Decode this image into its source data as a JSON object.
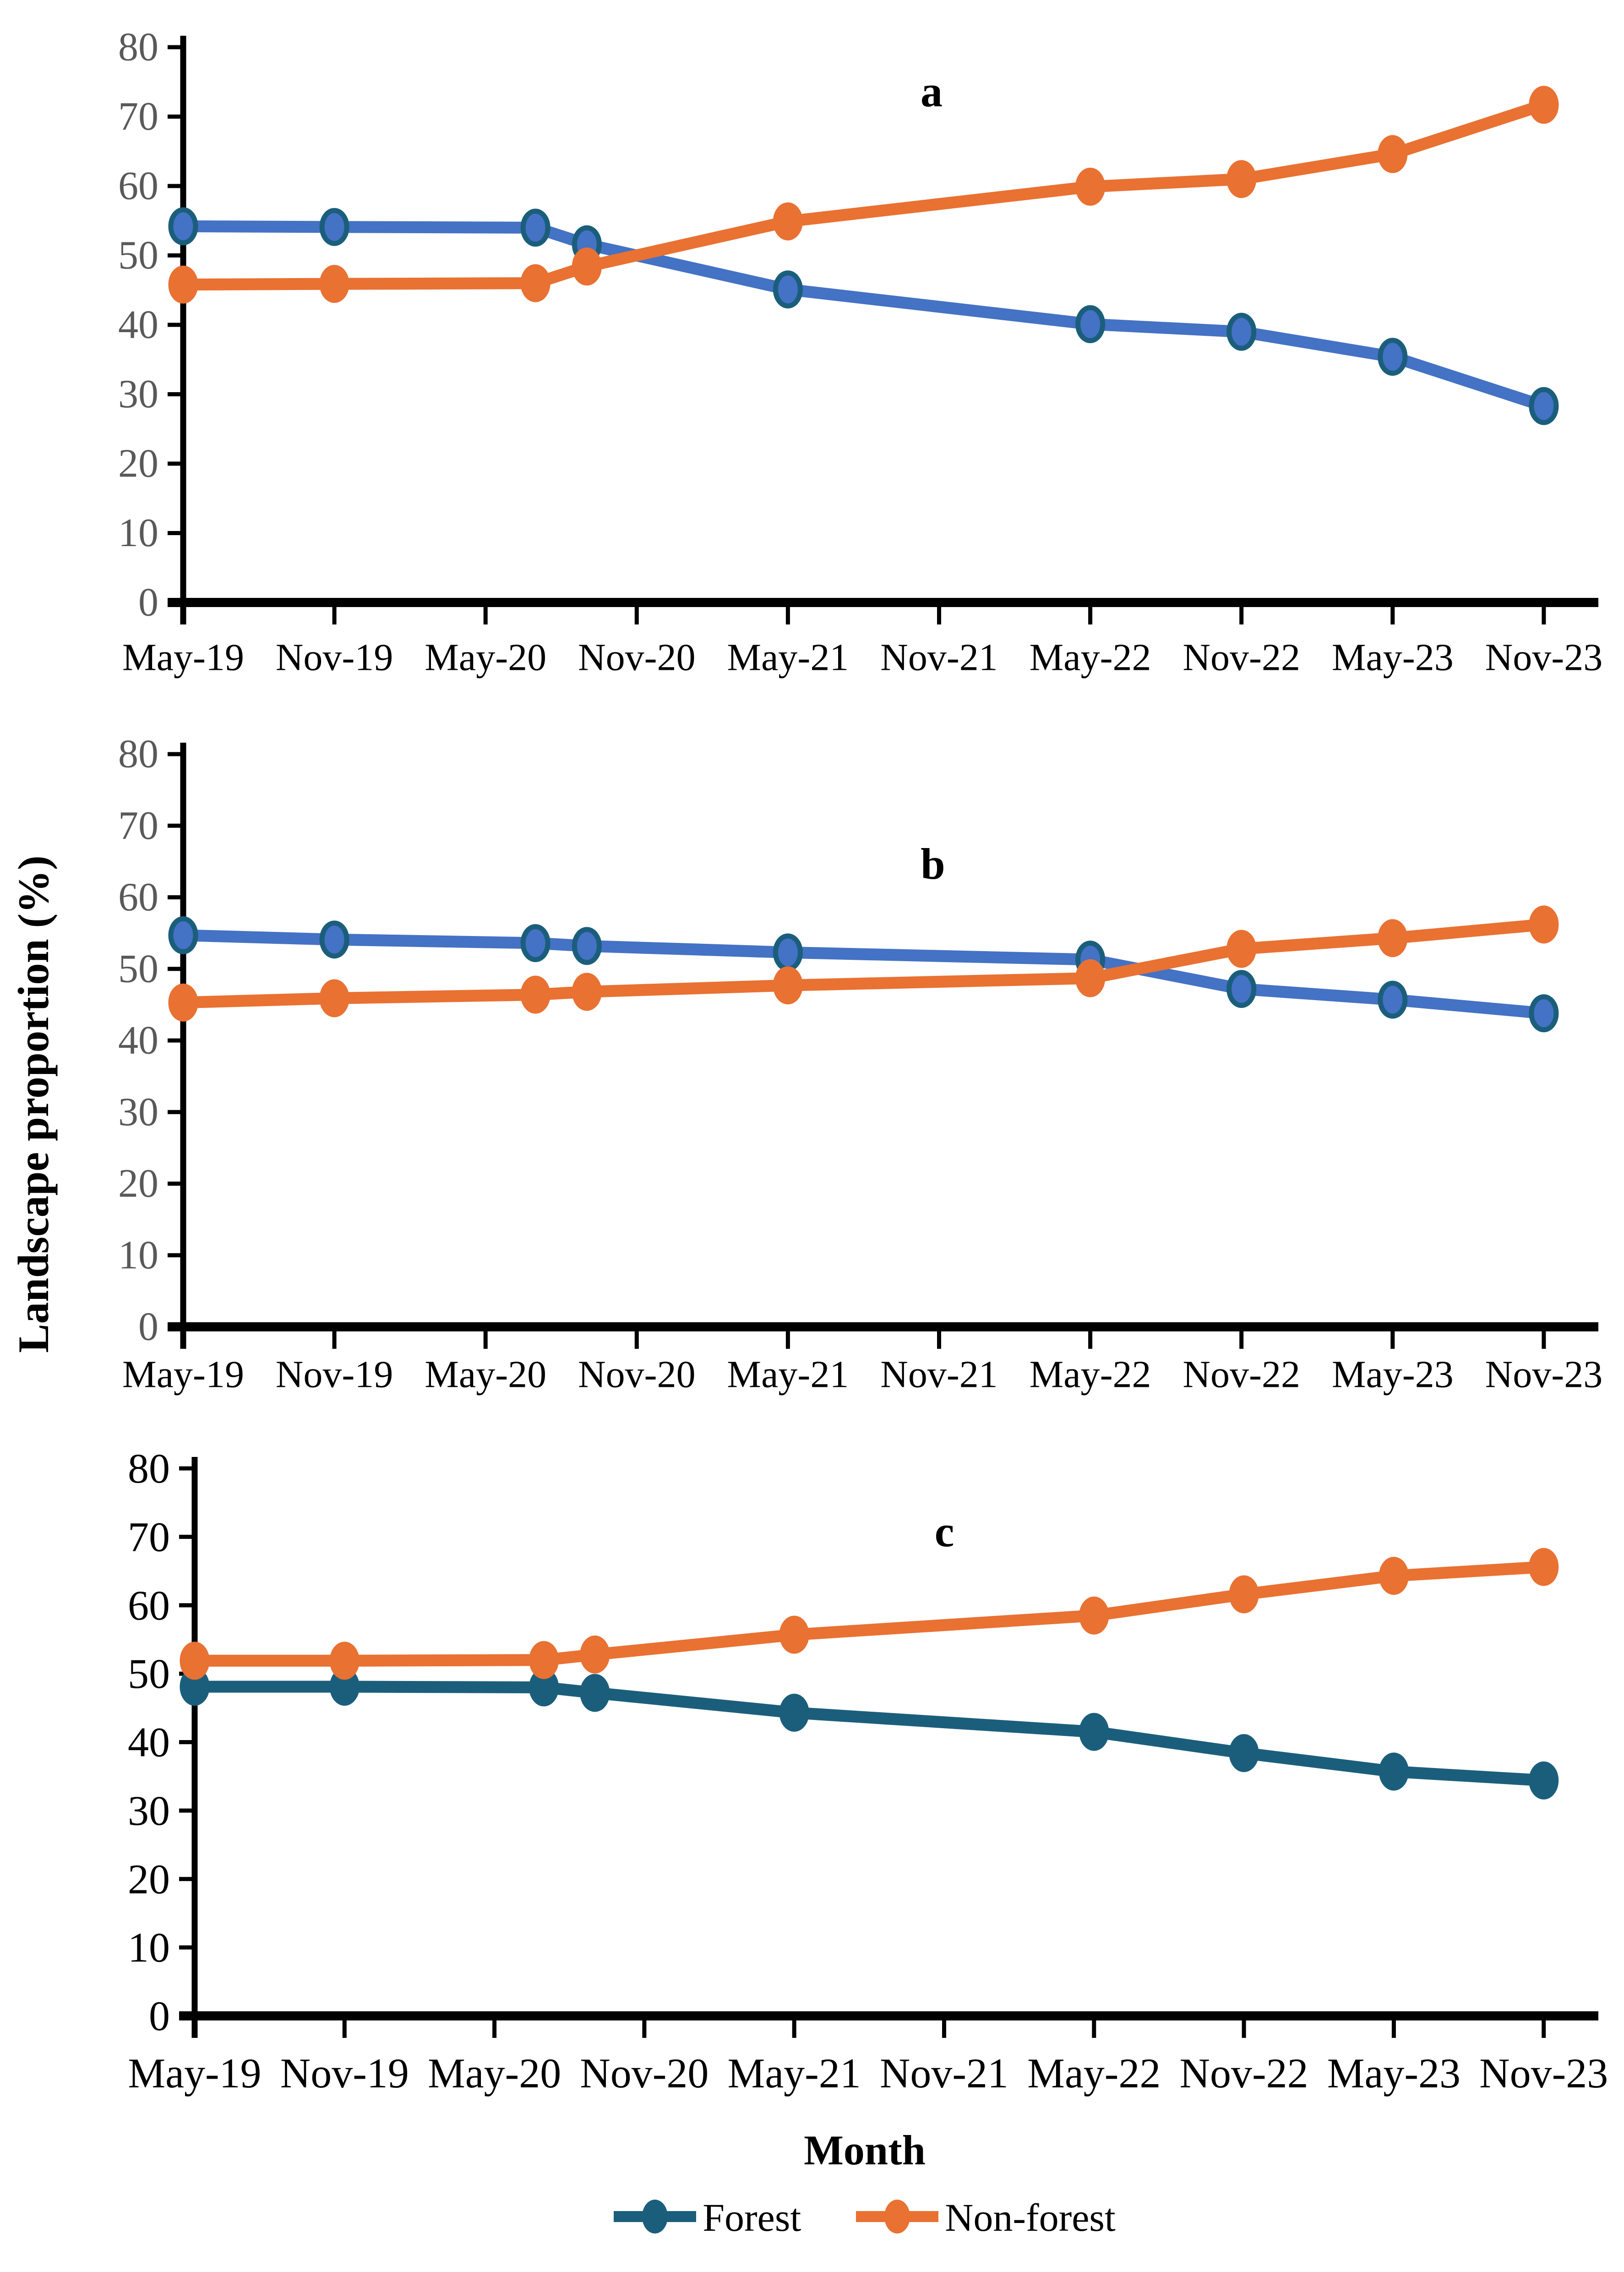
{
  "figure": {
    "y_axis_title": "Landscape proportion (%)",
    "x_axis_title": "Month",
    "legend": [
      {
        "label": "Forest",
        "color": "#1B5E7C",
        "swatch_icon": "line-with-circle-marker"
      },
      {
        "label": "Non-forest",
        "color": "#E97132",
        "swatch_icon": "line-with-circle-marker"
      }
    ],
    "colors": {
      "forest_line_ab": "#4472C4",
      "forest_marker_edge": "#1B5E7C",
      "forest_line_c": "#1B5E7C",
      "non_forest": "#E97132",
      "axis": "#000000",
      "gray_tick_labels": "#595959"
    }
  },
  "chart_data": [
    {
      "type": "line",
      "panel_label": "a",
      "title": "",
      "xlabel": "Month",
      "ylabel": "Landscape proportion (%)",
      "ylim": [
        0,
        80
      ],
      "y_ticks": [
        0,
        10,
        20,
        30,
        40,
        50,
        60,
        70,
        80
      ],
      "y_tick_label_color": "#595959",
      "x_tick_label_color": "#000000",
      "grid": "off",
      "legend_position": "bottom-shared",
      "x_tick_labels": [
        "May-19",
        "Nov-19",
        "May-20",
        "Nov-20",
        "May-21",
        "Nov-21",
        "May-22",
        "Nov-22",
        "May-23",
        "Nov-23"
      ],
      "point_dates": [
        "May-19",
        "Nov-19",
        "Jul-20",
        "Sep-20",
        "May-21",
        "May-22",
        "Nov-22",
        "May-23",
        "Nov-23"
      ],
      "x_units": [
        0,
        1,
        2.33,
        2.67,
        4,
        6,
        7,
        8,
        9
      ],
      "series": [
        {
          "name": "Forest",
          "line_color": "#4472C4",
          "marker_fill": "#4472C4",
          "marker_edge": "#1B5E7C",
          "values": [
            54.2,
            54.1,
            54.0,
            51.6,
            45.1,
            40.1,
            39.0,
            35.4,
            28.3
          ]
        },
        {
          "name": "Non-forest",
          "line_color": "#E97132",
          "marker_fill": "#E97132",
          "marker_edge": "#E97132",
          "values": [
            45.8,
            45.9,
            46.0,
            48.4,
            54.9,
            59.9,
            61.0,
            64.6,
            71.7
          ]
        }
      ]
    },
    {
      "type": "line",
      "panel_label": "b",
      "title": "",
      "xlabel": "Month",
      "ylabel": "Landscape proportion (%)",
      "ylim": [
        0,
        80
      ],
      "y_ticks": [
        0,
        10,
        20,
        30,
        40,
        50,
        60,
        70,
        80
      ],
      "y_tick_label_color": "#595959",
      "x_tick_label_color": "#000000",
      "grid": "off",
      "legend_position": "bottom-shared",
      "x_tick_labels": [
        "May-19",
        "Nov-19",
        "May-20",
        "Nov-20",
        "May-21",
        "Nov-21",
        "May-22",
        "Nov-22",
        "May-23",
        "Nov-23"
      ],
      "point_dates": [
        "May-19",
        "Nov-19",
        "Jul-20",
        "Sep-20",
        "May-21",
        "May-22",
        "Nov-22",
        "May-23",
        "Nov-23"
      ],
      "x_units": [
        0,
        1,
        2.33,
        2.67,
        4,
        6,
        7,
        8,
        9
      ],
      "series": [
        {
          "name": "Forest",
          "line_color": "#4472C4",
          "marker_fill": "#4472C4",
          "marker_edge": "#1B5E7C",
          "values": [
            54.7,
            54.1,
            53.6,
            53.2,
            52.3,
            51.3,
            47.2,
            45.7,
            43.8
          ]
        },
        {
          "name": "Non-forest",
          "line_color": "#E97132",
          "marker_fill": "#E97132",
          "marker_edge": "#E97132",
          "values": [
            45.3,
            45.9,
            46.4,
            46.8,
            47.7,
            48.7,
            52.8,
            54.3,
            56.2
          ]
        }
      ]
    },
    {
      "type": "line",
      "panel_label": "c",
      "title": "",
      "xlabel": "Month",
      "ylabel": "Landscape proportion (%)",
      "ylim": [
        0,
        80
      ],
      "y_ticks": [
        0,
        10,
        20,
        30,
        40,
        50,
        60,
        70,
        80
      ],
      "y_tick_label_color": "#000000",
      "x_tick_label_color": "#000000",
      "grid": "off",
      "legend_position": "bottom-shared",
      "x_tick_labels": [
        "May-19",
        "Nov-19",
        "May-20",
        "Nov-20",
        "May-21",
        "Nov-21",
        "May-22",
        "Nov-22",
        "May-23",
        "Nov-23"
      ],
      "point_dates": [
        "May-19",
        "Nov-19",
        "Jul-20",
        "Sep-20",
        "May-21",
        "May-22",
        "Nov-22",
        "May-23",
        "Nov-23"
      ],
      "x_units": [
        0,
        1,
        2.33,
        2.67,
        4,
        6,
        7,
        8,
        9
      ],
      "series": [
        {
          "name": "Forest",
          "line_color": "#1B5E7C",
          "marker_fill": "#1B5E7C",
          "marker_edge": "#1B5E7C",
          "values": [
            48.1,
            48.1,
            48.0,
            47.2,
            44.3,
            41.5,
            38.4,
            35.7,
            34.4
          ]
        },
        {
          "name": "Non-forest",
          "line_color": "#E97132",
          "marker_fill": "#E97132",
          "marker_edge": "#E97132",
          "values": [
            51.9,
            51.9,
            52.0,
            52.8,
            55.7,
            58.5,
            61.6,
            64.3,
            65.6
          ]
        }
      ]
    }
  ]
}
